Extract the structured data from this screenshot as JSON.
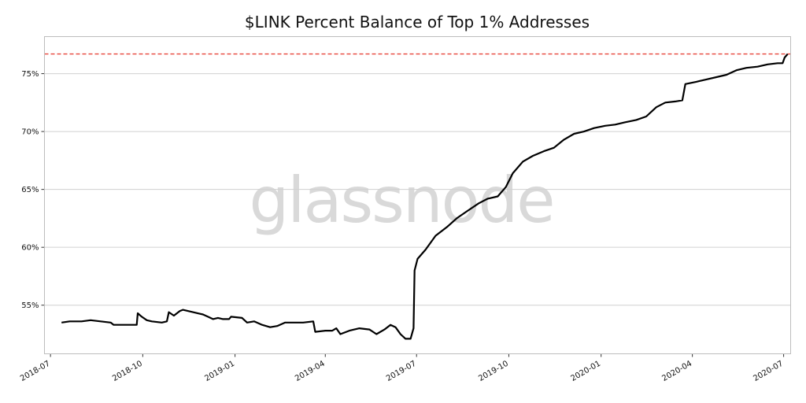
{
  "chart_data": {
    "type": "line",
    "title": "$LINK Percent Balance of Top 1% Addresses",
    "watermark": "glassnode",
    "xlabel": "",
    "ylabel": "",
    "x_ticks": [
      "2018-07",
      "2018-10",
      "2019-01",
      "2019-04",
      "2019-07",
      "2019-10",
      "2020-01",
      "2020-04",
      "2020-07"
    ],
    "y_ticks": [
      55,
      60,
      65,
      70,
      75
    ],
    "y_tick_labels": [
      "55%",
      "60%",
      "65%",
      "70%",
      "75%"
    ],
    "ylim": [
      50.8,
      78.2
    ],
    "xlim": [
      "2018-06-25",
      "2020-07-08"
    ],
    "grid": "horizontal",
    "reference_line": {
      "value": 76.7,
      "color": "#e8443a",
      "style": "dashed"
    },
    "series": [
      {
        "color": "#000000",
        "points": [
          [
            "2018-07-12",
            53.5
          ],
          [
            "2018-07-20",
            53.6
          ],
          [
            "2018-08-01",
            53.6
          ],
          [
            "2018-08-10",
            53.7
          ],
          [
            "2018-08-20",
            53.6
          ],
          [
            "2018-08-30",
            53.5
          ],
          [
            "2018-09-02",
            53.3
          ],
          [
            "2018-09-10",
            53.3
          ],
          [
            "2018-09-20",
            53.3
          ],
          [
            "2018-09-25",
            53.3
          ],
          [
            "2018-09-26",
            54.3
          ],
          [
            "2018-09-30",
            54.0
          ],
          [
            "2018-10-05",
            53.7
          ],
          [
            "2018-10-10",
            53.6
          ],
          [
            "2018-10-20",
            53.5
          ],
          [
            "2018-10-25",
            53.6
          ],
          [
            "2018-10-27",
            54.4
          ],
          [
            "2018-11-01",
            54.1
          ],
          [
            "2018-11-07",
            54.5
          ],
          [
            "2018-11-10",
            54.6
          ],
          [
            "2018-11-20",
            54.4
          ],
          [
            "2018-11-30",
            54.2
          ],
          [
            "2018-12-05",
            54.0
          ],
          [
            "2018-12-10",
            53.8
          ],
          [
            "2018-12-15",
            53.9
          ],
          [
            "2018-12-20",
            53.8
          ],
          [
            "2018-12-26",
            53.8
          ],
          [
            "2018-12-28",
            54.0
          ],
          [
            "2019-01-08",
            53.9
          ],
          [
            "2019-01-13",
            53.5
          ],
          [
            "2019-01-20",
            53.6
          ],
          [
            "2019-01-28",
            53.3
          ],
          [
            "2019-02-05",
            53.1
          ],
          [
            "2019-02-12",
            53.2
          ],
          [
            "2019-02-20",
            53.5
          ],
          [
            "2019-03-01",
            53.5
          ],
          [
            "2019-03-10",
            53.5
          ],
          [
            "2019-03-20",
            53.6
          ],
          [
            "2019-03-22",
            52.7
          ],
          [
            "2019-04-01",
            52.8
          ],
          [
            "2019-04-08",
            52.8
          ],
          [
            "2019-04-12",
            53.0
          ],
          [
            "2019-04-16",
            52.5
          ],
          [
            "2019-04-25",
            52.8
          ],
          [
            "2019-05-05",
            53.0
          ],
          [
            "2019-05-15",
            52.9
          ],
          [
            "2019-05-22",
            52.5
          ],
          [
            "2019-05-30",
            52.9
          ],
          [
            "2019-06-05",
            53.3
          ],
          [
            "2019-06-10",
            53.1
          ],
          [
            "2019-06-15",
            52.5
          ],
          [
            "2019-06-20",
            52.1
          ],
          [
            "2019-06-25",
            52.1
          ],
          [
            "2019-06-28",
            53.0
          ],
          [
            "2019-06-29",
            58.0
          ],
          [
            "2019-07-02",
            59.0
          ],
          [
            "2019-07-10",
            59.8
          ],
          [
            "2019-07-20",
            61.0
          ],
          [
            "2019-08-01",
            61.8
          ],
          [
            "2019-08-10",
            62.5
          ],
          [
            "2019-08-20",
            63.1
          ],
          [
            "2019-09-01",
            63.8
          ],
          [
            "2019-09-10",
            64.2
          ],
          [
            "2019-09-20",
            64.4
          ],
          [
            "2019-09-28",
            65.2
          ],
          [
            "2019-10-05",
            66.4
          ],
          [
            "2019-10-15",
            67.4
          ],
          [
            "2019-10-25",
            67.9
          ],
          [
            "2019-11-05",
            68.3
          ],
          [
            "2019-11-15",
            68.6
          ],
          [
            "2019-11-25",
            69.3
          ],
          [
            "2019-12-05",
            69.8
          ],
          [
            "2019-12-15",
            70.0
          ],
          [
            "2019-12-25",
            70.3
          ],
          [
            "2020-01-05",
            70.5
          ],
          [
            "2020-01-15",
            70.6
          ],
          [
            "2020-01-25",
            70.8
          ],
          [
            "2020-02-05",
            71.0
          ],
          [
            "2020-02-15",
            71.3
          ],
          [
            "2020-02-25",
            72.1
          ],
          [
            "2020-03-05",
            72.5
          ],
          [
            "2020-03-15",
            72.6
          ],
          [
            "2020-03-22",
            72.7
          ],
          [
            "2020-03-25",
            74.1
          ],
          [
            "2020-04-05",
            74.3
          ],
          [
            "2020-04-15",
            74.5
          ],
          [
            "2020-04-25",
            74.7
          ],
          [
            "2020-05-05",
            74.9
          ],
          [
            "2020-05-15",
            75.3
          ],
          [
            "2020-05-25",
            75.5
          ],
          [
            "2020-06-05",
            75.6
          ],
          [
            "2020-06-15",
            75.8
          ],
          [
            "2020-06-25",
            75.9
          ],
          [
            "2020-06-30",
            75.9
          ],
          [
            "2020-07-02",
            76.4
          ],
          [
            "2020-07-05",
            76.7
          ]
        ]
      }
    ]
  }
}
